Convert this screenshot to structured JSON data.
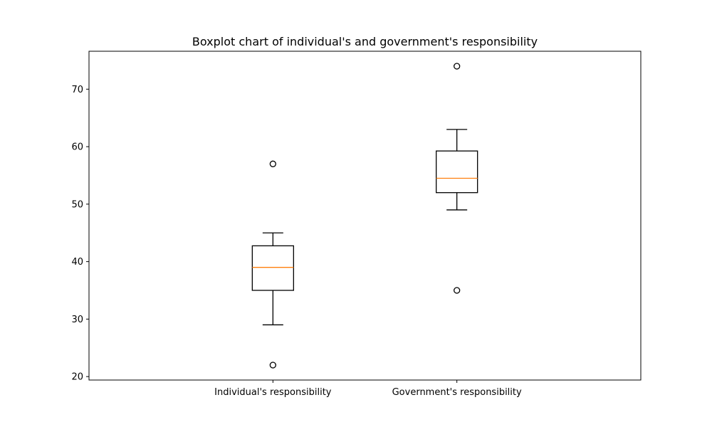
{
  "chart_data": {
    "type": "boxplot",
    "title": "Boxplot chart of individual's and government's responsibility",
    "xlabel": "",
    "ylabel": "",
    "categories": [
      "Individual's responsibility",
      "Government's responsibility"
    ],
    "boxes": [
      {
        "whisker_low": 29,
        "q1": 35,
        "median": 39,
        "q3": 42.75,
        "whisker_high": 45,
        "outliers": [
          57,
          22
        ]
      },
      {
        "whisker_low": 49,
        "q1": 52,
        "median": 54.5,
        "q3": 59.25,
        "whisker_high": 63,
        "outliers": [
          74,
          35
        ]
      }
    ],
    "ylim": [
      19.4,
      76.6
    ],
    "yticks": [
      20,
      30,
      40,
      50,
      60,
      70
    ],
    "grid": false,
    "colors": {
      "box": "#000000",
      "median": "#ff7f0e",
      "background": "#ffffff"
    }
  }
}
